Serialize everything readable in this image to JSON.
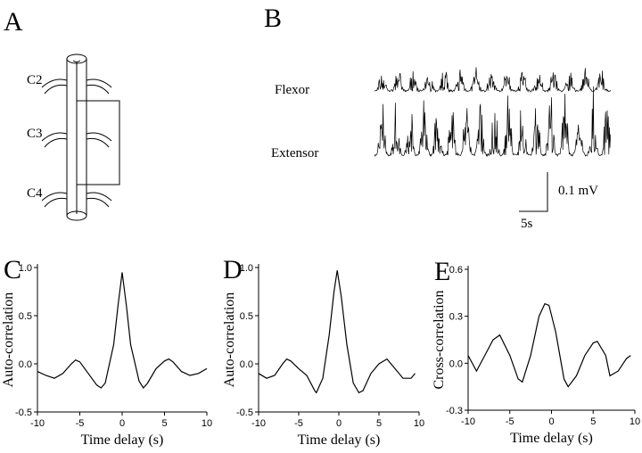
{
  "figure": {
    "panel_a": {
      "label": "A",
      "segments": [
        "C2",
        "C3",
        "C4"
      ]
    },
    "panel_b": {
      "label": "B",
      "traces": [
        "Flexor",
        "Extensor"
      ],
      "scale_y": "0.1 mV",
      "scale_x": "5s"
    }
  },
  "chart_data": [
    {
      "type": "line",
      "panel": "C",
      "ylabel": "Auto-correlation",
      "xlabel": "Time delay (s)",
      "color": "#000000",
      "x": [
        -10,
        -9,
        -8,
        -7,
        -6,
        -5.5,
        -5,
        -4,
        -3,
        -2.5,
        -2,
        -1,
        -0.5,
        0,
        0.5,
        1,
        2,
        2.5,
        3,
        4,
        5,
        5.5,
        6,
        7,
        8,
        9,
        10
      ],
      "values": [
        -0.08,
        -0.12,
        -0.15,
        -0.1,
        0.0,
        0.04,
        0.02,
        -0.1,
        -0.22,
        -0.25,
        -0.2,
        0.2,
        0.6,
        0.95,
        0.6,
        0.2,
        -0.18,
        -0.25,
        -0.2,
        -0.05,
        0.03,
        0.05,
        0.02,
        -0.08,
        -0.12,
        -0.1,
        -0.05
      ],
      "xlim": [
        -10,
        10
      ],
      "xticks": [
        -10,
        -5,
        0,
        5,
        10
      ],
      "ylim": [
        -0.5,
        1.0
      ],
      "yticks": [
        -0.5,
        {
          "value": 0,
          "label": "0.0"
        },
        0.5,
        {
          "value": 1.0,
          "label": "1.0"
        }
      ]
    },
    {
      "type": "line",
      "panel": "D",
      "ylabel": "Auto-correlation",
      "xlabel": "Time delay (s)",
      "color": "#000000",
      "x": [
        -10,
        -9,
        -8,
        -7,
        -6.5,
        -6,
        -5,
        -4,
        -3,
        -2.8,
        -2,
        -1.2,
        -0.6,
        -0.2,
        0.3,
        1,
        1.8,
        2.5,
        3,
        4,
        5,
        6,
        7,
        8,
        9,
        9.5
      ],
      "values": [
        -0.1,
        -0.15,
        -0.12,
        0.0,
        0.05,
        0.03,
        -0.05,
        -0.12,
        -0.28,
        -0.3,
        -0.15,
        0.3,
        0.75,
        0.97,
        0.7,
        0.2,
        -0.2,
        -0.3,
        -0.28,
        -0.1,
        0.0,
        0.05,
        -0.05,
        -0.15,
        -0.15,
        -0.1
      ],
      "xlim": [
        -10,
        10
      ],
      "xticks": [
        -10,
        -5,
        0,
        5,
        10
      ],
      "ylim": [
        -0.5,
        1.0
      ],
      "yticks": [
        -0.5,
        {
          "value": 0,
          "label": "0.0"
        },
        0.5,
        {
          "value": 1.0,
          "label": "1.0"
        }
      ]
    },
    {
      "type": "line",
      "panel": "E",
      "ylabel": "Cross-correlation",
      "xlabel": "Time delay (s)",
      "color": "#000000",
      "x": [
        -10,
        -9,
        -8,
        -7,
        -6.2,
        -5,
        -4,
        -3.5,
        -2.5,
        -1.5,
        -0.8,
        -0.3,
        0.5,
        1.5,
        2,
        3,
        4,
        5,
        5.5,
        6.5,
        7,
        8,
        9,
        9.5
      ],
      "values": [
        0.05,
        -0.05,
        0.05,
        0.15,
        0.18,
        0.05,
        -0.1,
        -0.12,
        0.05,
        0.3,
        0.38,
        0.37,
        0.2,
        -0.1,
        -0.15,
        -0.08,
        0.05,
        0.13,
        0.14,
        0.05,
        -0.08,
        -0.05,
        0.03,
        0.05
      ],
      "xlim": [
        -10,
        10
      ],
      "xticks": [
        -10,
        -5,
        0,
        5,
        10
      ],
      "ylim": [
        -0.3,
        0.6
      ],
      "yticks": [
        -0.3,
        {
          "value": 0,
          "label": "0.0"
        },
        0.3,
        0.6
      ]
    }
  ]
}
